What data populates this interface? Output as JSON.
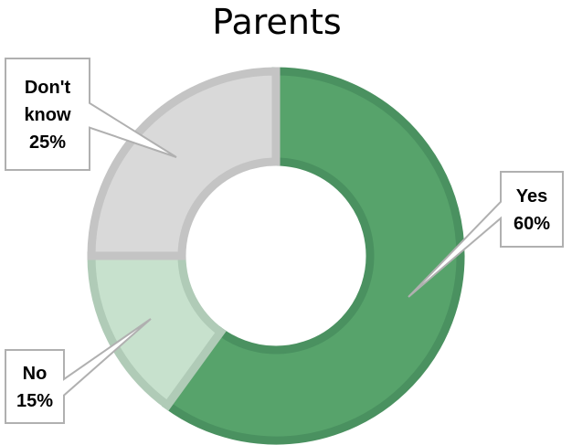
{
  "chart_data": {
    "type": "pie",
    "subtype": "donut",
    "title": "Parents",
    "legend": "none",
    "slices": [
      {
        "label": "Yes",
        "value": 60,
        "display": [
          "Yes",
          "60%"
        ],
        "fill": "#57a36b",
        "stroke": "#4a9160"
      },
      {
        "label": "No",
        "value": 15,
        "display": [
          "No",
          "15%"
        ],
        "fill": "#c7e1cd",
        "stroke": "#b0cbb7"
      },
      {
        "label": "Don't know",
        "value": 25,
        "display": [
          "Don't",
          "know",
          "25%"
        ],
        "fill": "#d9d9d9",
        "stroke": "#c4c4c4"
      }
    ]
  }
}
